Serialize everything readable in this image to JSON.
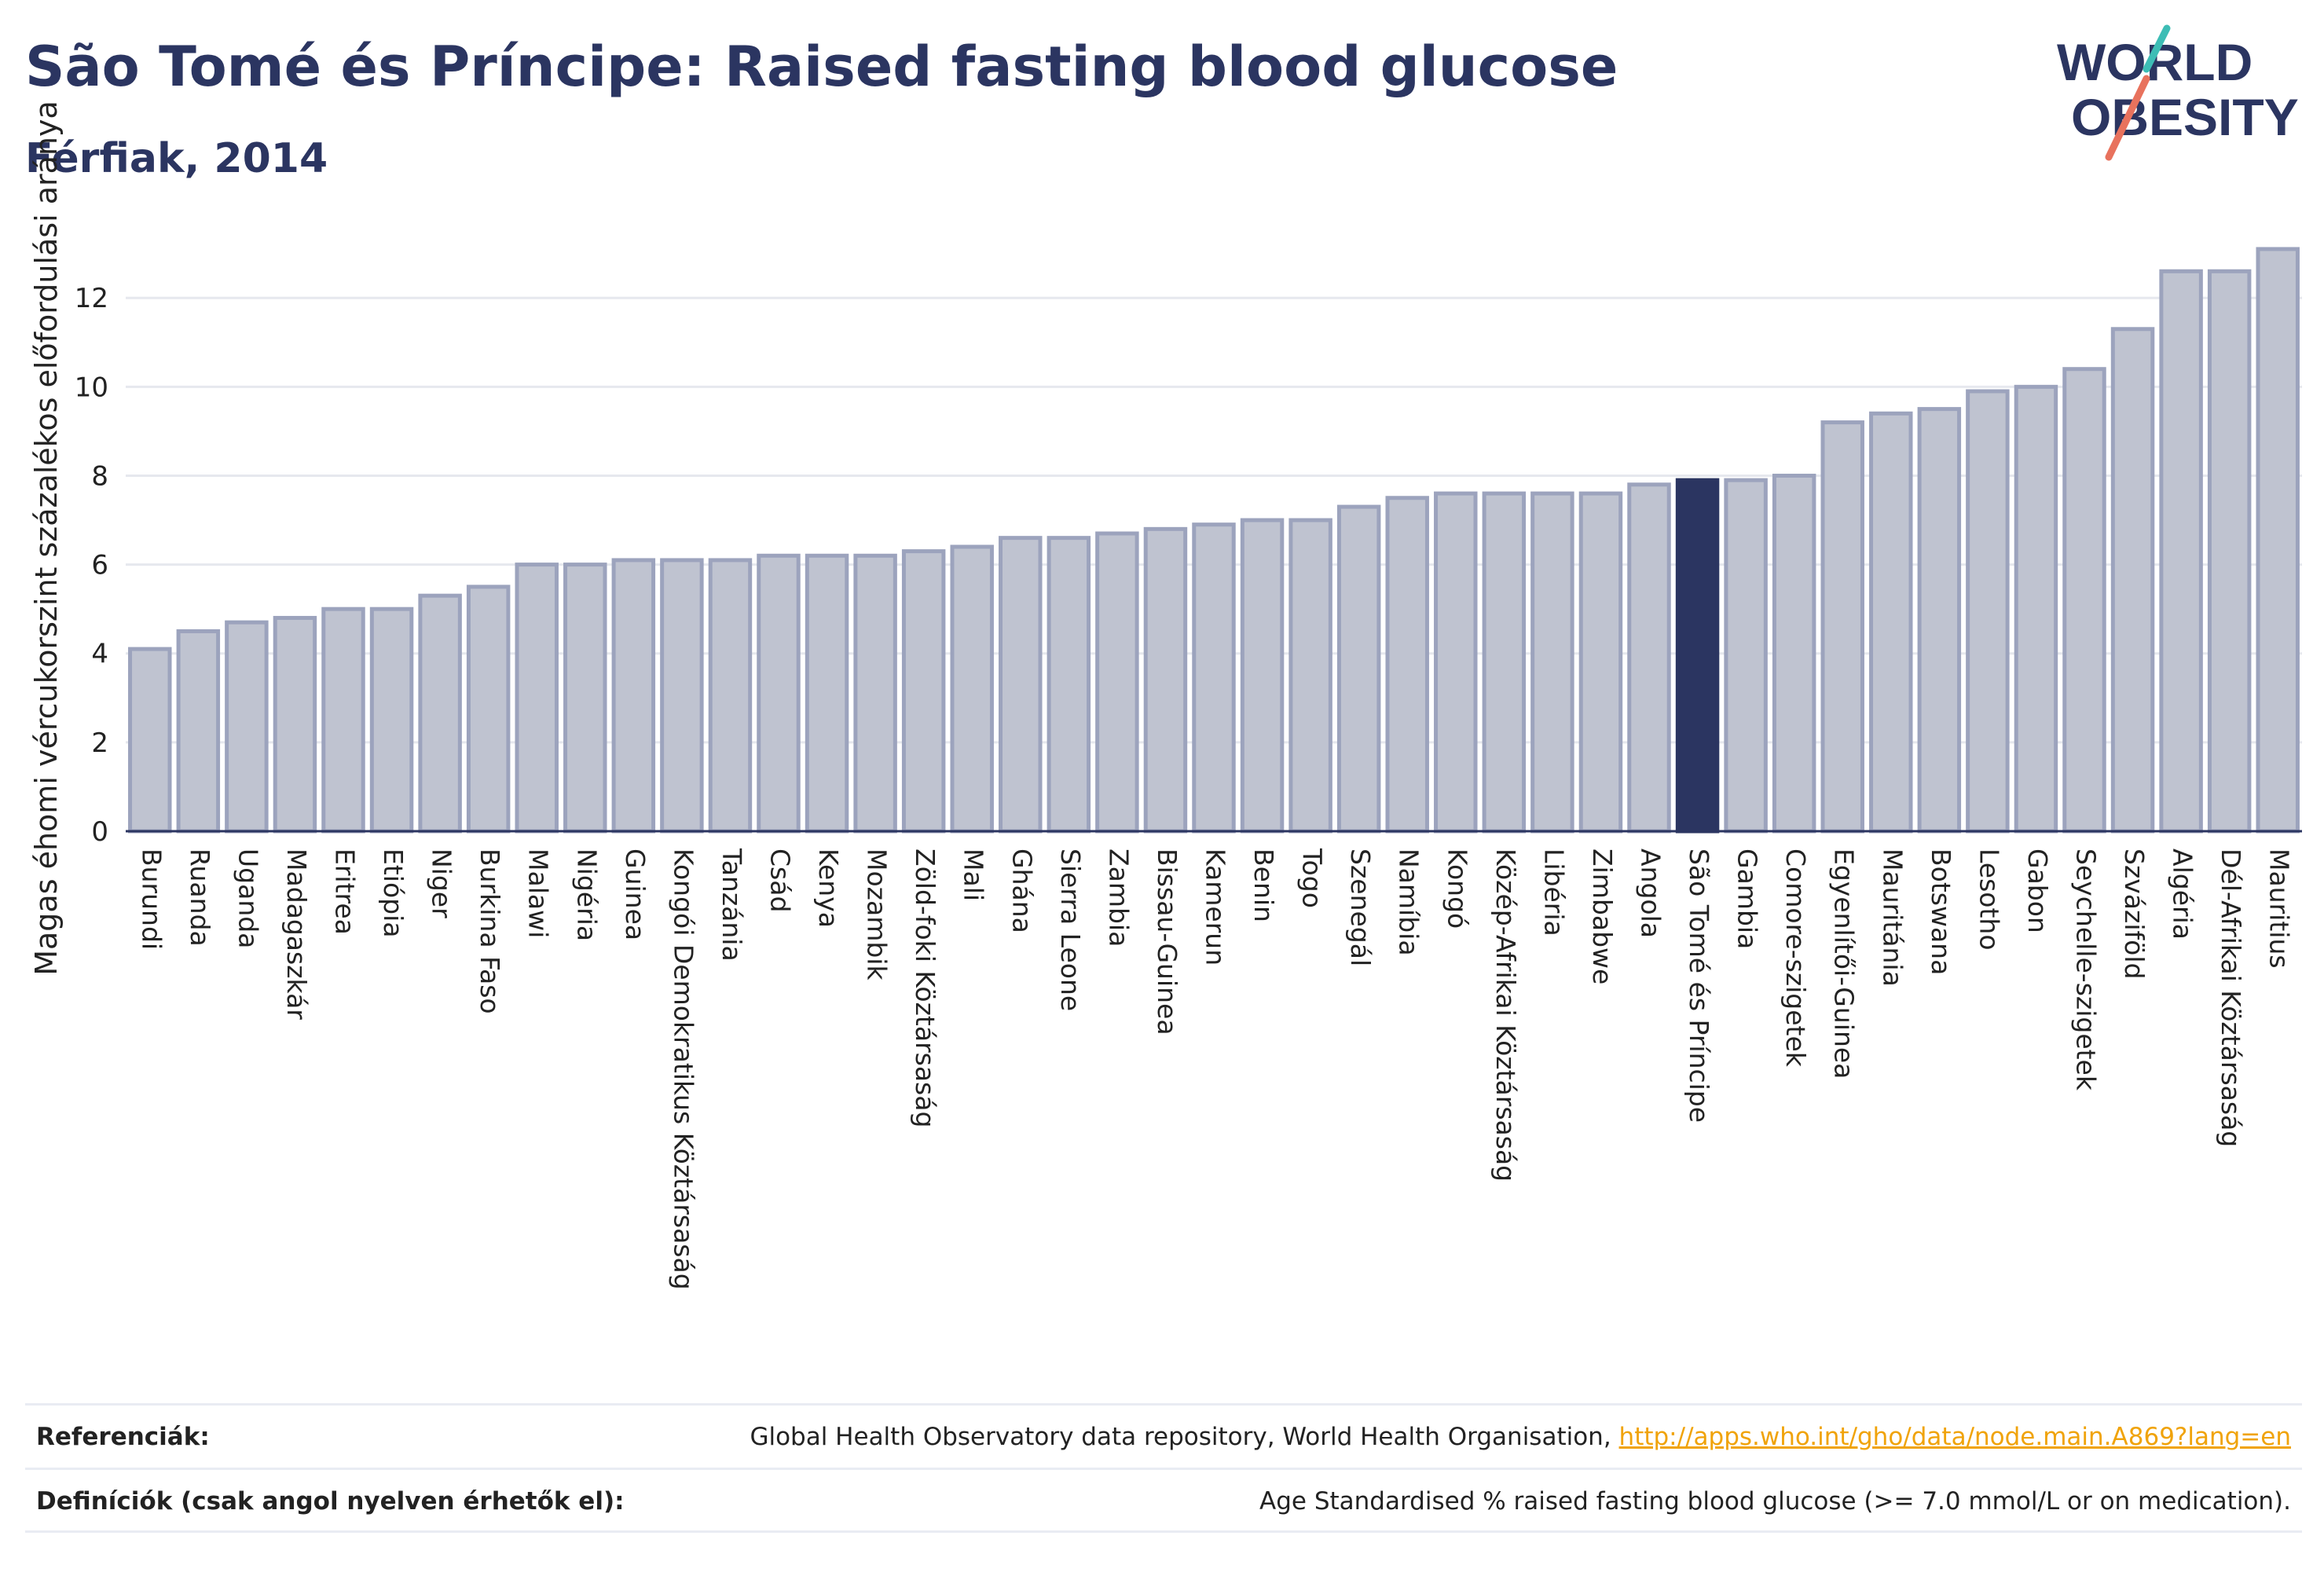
{
  "header": {
    "title": "São Tomé és Príncipe: Raised fasting blood glucose",
    "subtitle": "Férfiak, 2014"
  },
  "logo": {
    "line1": "WORLD",
    "line2": "OBESITY"
  },
  "chart_data": {
    "type": "bar",
    "ylabel": "Magas éhomi vércukorszint százalékos előfordulási aránya",
    "ylim": [
      0,
      13.4
    ],
    "yticks": [
      0,
      2,
      4,
      6,
      8,
      10,
      12
    ],
    "grid": true,
    "highlight": "São Tomé és Príncipe",
    "colors": {
      "bar": "#bfc3d0",
      "bar_edge": "#9ca3bd",
      "highlight": "#2b3561",
      "grid": "#e6e8ee",
      "text": "#222222"
    },
    "categories": [
      "Burundi",
      "Ruanda",
      "Uganda",
      "Madagaszkár",
      "Eritrea",
      "Etiópia",
      "Niger",
      "Burkina Faso",
      "Malawi",
      "Nigéria",
      "Guinea",
      "Kongói Demokratikus Köztársaság",
      "Tanzánia",
      "Csád",
      "Kenya",
      "Mozambik",
      "Zöld-foki Köztársaság",
      "Mali",
      "Ghána",
      "Sierra Leone",
      "Zambia",
      "Bissau-Guinea",
      "Kamerun",
      "Benin",
      "Togo",
      "Szenegál",
      "Namíbia",
      "Kongó",
      "Közép-Afrikai Köztársaság",
      "Libéria",
      "Zimbabwe",
      "Angola",
      "São Tomé és Príncipe",
      "Gambia",
      "Comore-szigetek",
      "Egyenlítői-Guinea",
      "Mauritánia",
      "Botswana",
      "Lesotho",
      "Gabon",
      "Seychelle-szigetek",
      "Szváziföld",
      "Algéria",
      "Dél-Afrikai Köztársaság",
      "Mauritius"
    ],
    "values": [
      4.1,
      4.5,
      4.7,
      4.8,
      5.0,
      5.0,
      5.3,
      5.5,
      6.0,
      6.0,
      6.1,
      6.1,
      6.1,
      6.2,
      6.2,
      6.2,
      6.3,
      6.4,
      6.6,
      6.6,
      6.7,
      6.8,
      6.9,
      7.0,
      7.0,
      7.3,
      7.5,
      7.6,
      7.6,
      7.6,
      7.6,
      7.8,
      7.9,
      7.9,
      8.0,
      9.2,
      9.4,
      9.5,
      9.9,
      10.0,
      10.4,
      11.3,
      12.6,
      12.6,
      13.1
    ]
  },
  "references": {
    "label": "Referenciák:",
    "text": "Global Health Observatory data repository, World Health Organisation, ",
    "link": "http://apps.who.int/gho/data/node.main.A869?lang=en"
  },
  "definitions": {
    "label": "Definíciók (csak angol nyelven érhetők el):",
    "text": "Age Standardised % raised fasting blood glucose (>= 7.0 mmol/L or on medication)."
  }
}
